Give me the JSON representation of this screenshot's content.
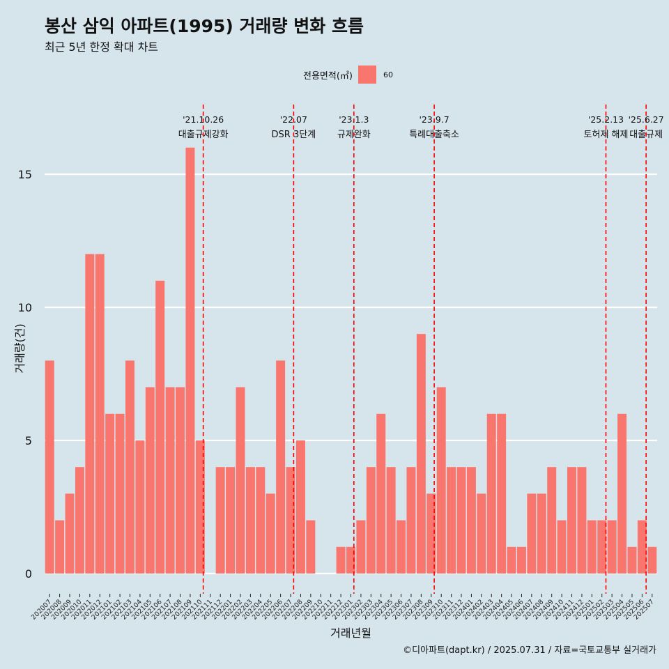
{
  "title": "봉산 삼익 아파트(1995) 거래량 변화 흐름",
  "subtitle": "최근 5년 한정 확대 차트",
  "legend": {
    "title": "전용면적(㎡)",
    "item": "60"
  },
  "caption": "©디아파트(dapt.kr) / 2025.07.31 / 자료=국토교통부 실거래가",
  "colors": {
    "bar": "#f8766d",
    "event_line": "#ff0000",
    "background": "#d6e4ec",
    "grid": "#ffffff"
  },
  "chart_data": {
    "type": "bar",
    "xlabel": "거래년월",
    "ylabel": "거래량(건)",
    "ylim": [
      0,
      16
    ],
    "yticks": [
      0,
      5,
      10,
      15
    ],
    "grid": true,
    "legend_position": "top",
    "categories": [
      "202007",
      "202008",
      "202009",
      "202010",
      "202011",
      "202012",
      "202101",
      "202102",
      "202103",
      "202104",
      "202105",
      "202106",
      "202107",
      "202108",
      "202109",
      "202110",
      "202111",
      "202112",
      "202201",
      "202202",
      "202203",
      "202204",
      "202205",
      "202206",
      "202207",
      "202208",
      "202209",
      "202210",
      "202211",
      "202212",
      "202301",
      "202302",
      "202303",
      "202304",
      "202305",
      "202306",
      "202307",
      "202308",
      "202309",
      "202310",
      "202311",
      "202312",
      "202401",
      "202402",
      "202403",
      "202404",
      "202405",
      "202406",
      "202407",
      "202408",
      "202409",
      "202410",
      "202411",
      "202412",
      "202501",
      "202502",
      "202503",
      "202504",
      "202505",
      "202506",
      "202507"
    ],
    "series": [
      {
        "name": "60",
        "values": [
          8,
          2,
          3,
          4,
          12,
          12,
          6,
          6,
          8,
          5,
          7,
          11,
          7,
          7,
          16,
          5,
          0,
          4,
          4,
          7,
          4,
          4,
          3,
          8,
          4,
          5,
          2,
          0,
          0,
          1,
          1,
          2,
          4,
          6,
          4,
          2,
          4,
          9,
          3,
          7,
          4,
          4,
          4,
          3,
          6,
          6,
          1,
          1,
          3,
          3,
          4,
          2,
          4,
          4,
          2,
          2,
          2,
          6,
          1,
          2,
          1
        ]
      }
    ],
    "events": [
      {
        "date": "'21.10.26",
        "label": "대출규제강화",
        "month_index": 15.3
      },
      {
        "date": "'22.07",
        "label": "DSR 3단계",
        "month_index": 24.3
      },
      {
        "date": "'23.1.3",
        "label": "규제완화",
        "month_index": 30.3
      },
      {
        "date": "'23.9.7",
        "label": "특례대출축소",
        "month_index": 38.3
      },
      {
        "date": "'25.2.13",
        "label": "토허제 해제",
        "month_index": 55.4
      },
      {
        "date": "'25.6.27",
        "label": "대출규제",
        "month_index": 59.4
      }
    ]
  }
}
